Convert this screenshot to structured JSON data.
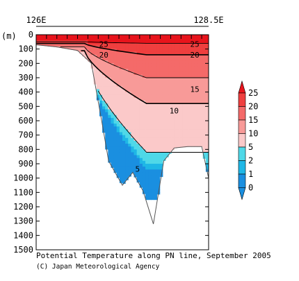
{
  "chart_data": {
    "type": "heatmap",
    "title": "",
    "caption": "Potential Temperature along PN line, September 2005",
    "credit": "(C) Japan Meteorological Agency",
    "ylabel": "(m)",
    "xlabel": "",
    "x_tick_labels": [
      "126E",
      "128.5E"
    ],
    "xlim": [
      126,
      128.5
    ],
    "ylim": [
      0,
      1500
    ],
    "y_ticks": [
      0,
      100,
      200,
      300,
      400,
      500,
      600,
      700,
      800,
      900,
      1000,
      1100,
      1200,
      1300,
      1400,
      1500
    ],
    "station_longitudes": [
      126.0,
      126.15,
      126.3,
      126.45,
      126.6,
      126.75,
      126.9,
      127.05,
      127.2,
      127.35,
      127.5,
      127.65,
      127.8,
      127.95,
      128.1,
      128.25,
      128.4
    ],
    "bottom_profile": {
      "x": [
        126.0,
        126.3,
        126.6,
        126.8,
        126.95,
        127.05,
        127.25,
        127.4,
        127.55,
        127.7,
        127.85,
        128.0,
        128.2,
        128.4,
        128.5
      ],
      "depth": [
        70,
        85,
        110,
        200,
        600,
        880,
        1050,
        960,
        1090,
        1320,
        880,
        790,
        780,
        780,
        1000
      ]
    },
    "contour_levels": [
      0,
      1,
      2,
      5,
      10,
      15,
      20,
      25
    ],
    "colorbar": {
      "labels": [
        "25",
        "20",
        "15",
        "10",
        "5",
        "2",
        "1",
        "0"
      ],
      "colors": [
        "#e8141c",
        "#ef3f3f",
        "#f46a69",
        "#f89a98",
        "#fbc9c9",
        "#4fd8e8",
        "#1fb7e6",
        "#1a8fe0"
      ]
    },
    "contour_labels": [
      {
        "text": "25",
        "x": 126.98,
        "depth": 85
      },
      {
        "text": "25",
        "x": 128.3,
        "depth": 85
      },
      {
        "text": "20",
        "x": 126.98,
        "depth": 160
      },
      {
        "text": "20",
        "x": 128.3,
        "depth": 160
      },
      {
        "text": "15",
        "x": 128.3,
        "depth": 400
      },
      {
        "text": "10",
        "x": 128.0,
        "depth": 550
      },
      {
        "text": "5",
        "x": 127.47,
        "depth": 955
      }
    ]
  }
}
